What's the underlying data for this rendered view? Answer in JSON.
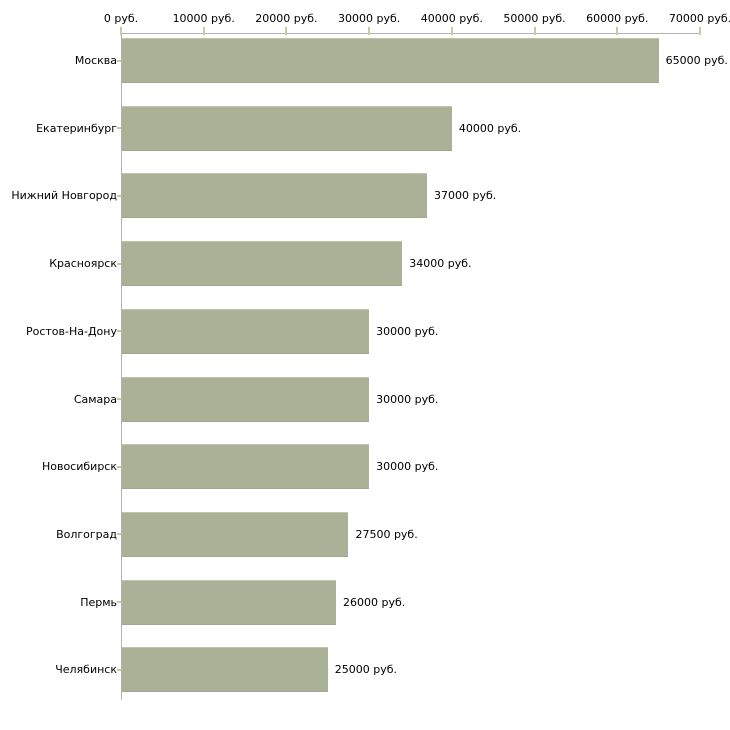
{
  "chart_data": {
    "type": "bar",
    "orientation": "horizontal",
    "title": "",
    "xlabel": "",
    "ylabel": "",
    "categories": [
      "Москва",
      "Екатеринбург",
      "Нижний Новгород",
      "Красноярск",
      "Ростов-На-Дону",
      "Самара",
      "Новосибирск",
      "Волгоград",
      "Пермь",
      "Челябинск"
    ],
    "values": [
      65000,
      40000,
      37000,
      34000,
      30000,
      30000,
      30000,
      27500,
      26000,
      25000
    ],
    "value_labels": [
      "65000 руб.",
      "40000 руб.",
      "37000 руб.",
      "34000 руб.",
      "30000 руб.",
      "30000 руб.",
      "30000 руб.",
      "27500 руб.",
      "26000 руб.",
      "25000 руб."
    ],
    "x_axis": {
      "position": "top",
      "min": 0,
      "max": 70000,
      "ticks": [
        0,
        10000,
        20000,
        30000,
        40000,
        50000,
        60000,
        70000
      ],
      "tick_labels": [
        "0 руб.",
        "10000 руб.",
        "20000 руб.",
        "30000 руб.",
        "40000 руб.",
        "50000 руб.",
        "60000 руб.",
        "70000 руб."
      ]
    },
    "grid": false,
    "legend": false,
    "colors": {
      "bar": "#abb197",
      "bar_edge_light": "#c2c6ad",
      "bar_edge_dark": "#a2a88e",
      "axis_line": "#b3b3b3",
      "tick_mark": "#c9cb9d",
      "text": "#000000",
      "background": "#ffffff"
    }
  }
}
